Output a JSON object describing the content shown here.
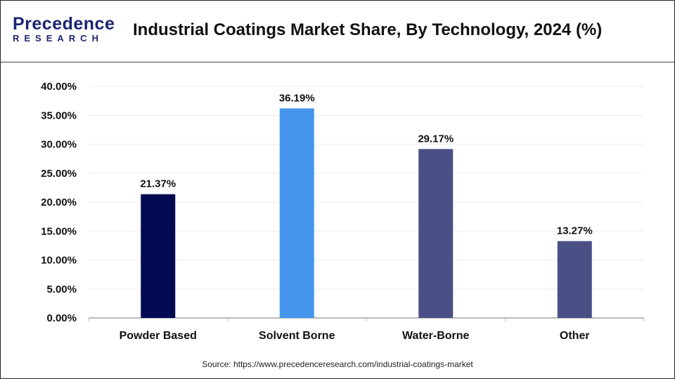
{
  "logo": {
    "line1": "Precedence",
    "line2": "RESEARCH"
  },
  "title": "Industrial Coatings Market Share, By Technology, 2024 (%)",
  "source": "Source: https://www.precedenceresearch.com/industrial-coatings-market",
  "chart_data": {
    "type": "bar",
    "categories": [
      "Powder Based",
      "Solvent Borne",
      "Water-Borne",
      "Other"
    ],
    "values": [
      21.37,
      36.19,
      29.17,
      13.27
    ],
    "data_labels": [
      "21.37%",
      "36.19%",
      "29.17%",
      "13.27%"
    ],
    "colors": [
      "#020b52",
      "#4595ec",
      "#4a4f85",
      "#4a4f85"
    ],
    "ylim": [
      0,
      40
    ],
    "yticks": [
      "0.00%",
      "5.00%",
      "10.00%",
      "15.00%",
      "20.00%",
      "25.00%",
      "30.00%",
      "35.00%",
      "40.00%"
    ],
    "grid": true,
    "title": "Industrial Coatings Market Share, By Technology, 2024 (%)"
  }
}
